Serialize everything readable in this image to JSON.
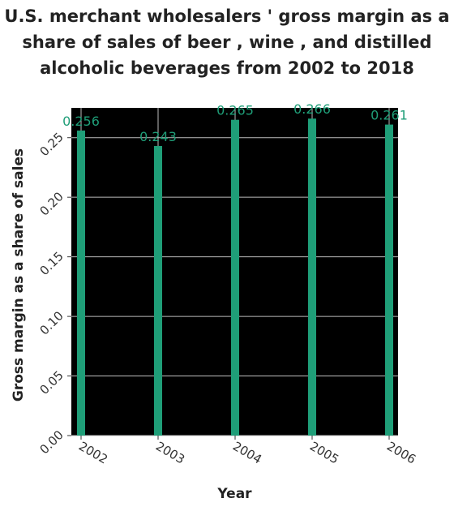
{
  "chart_data": {
    "type": "bar",
    "title": "U.S. merchant wholesalers ' gross margin as a share of sales of beer , wine , and distilled alcoholic beverages from 2002 to 2018",
    "xlabel": "Year",
    "ylabel": "Gross margin as a share of sales",
    "categories": [
      "2002",
      "2003",
      "2004",
      "2005",
      "2006"
    ],
    "values": [
      0.256,
      0.243,
      0.265,
      0.266,
      0.261
    ],
    "data_labels": [
      "0.256",
      "0.243",
      "0.265",
      "0.266",
      "0.261"
    ],
    "ylim": [
      0,
      0.275
    ],
    "yticks": [
      0.0,
      0.05,
      0.1,
      0.15,
      0.2,
      0.25
    ],
    "ytick_labels": [
      "0.00",
      "0.05",
      "0.10",
      "0.15",
      "0.20",
      "0.25"
    ],
    "grid": true,
    "colors": {
      "bar": "#1f9e78",
      "panel": "#000000",
      "grid": "#bdbdbd",
      "label": "#1f9e78"
    }
  }
}
